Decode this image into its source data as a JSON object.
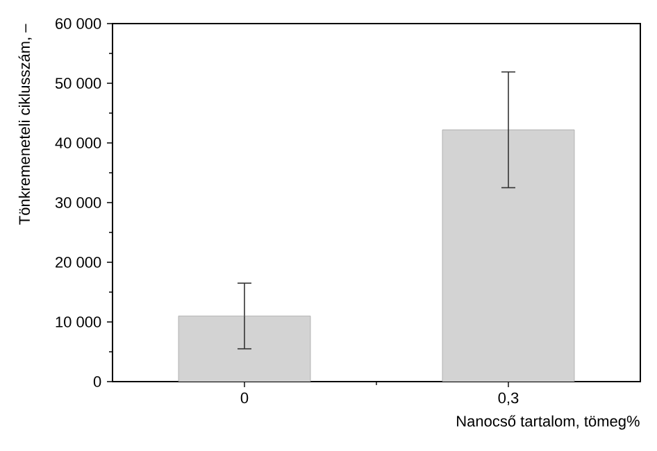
{
  "chart_data": {
    "type": "bar",
    "xlabel": "Nanocső tartalom, tömeg%",
    "ylabel": "Tönkremeneteli ciklusszám, –",
    "categories": [
      "0",
      "0,3"
    ],
    "values": [
      11000,
      42200
    ],
    "errors": [
      5500,
      9700
    ],
    "color": "#d3d3d3",
    "ylim": [
      0,
      60000
    ],
    "yticks": [
      0,
      {
        "value": 10000,
        "label": "10 000"
      },
      {
        "value": 20000,
        "label": "20 000"
      },
      {
        "value": 30000,
        "label": "30 000"
      },
      {
        "value": 40000,
        "label": "40 000"
      },
      {
        "value": 50000,
        "label": "50 000"
      },
      {
        "value": 60000,
        "label": "60 000"
      }
    ]
  }
}
